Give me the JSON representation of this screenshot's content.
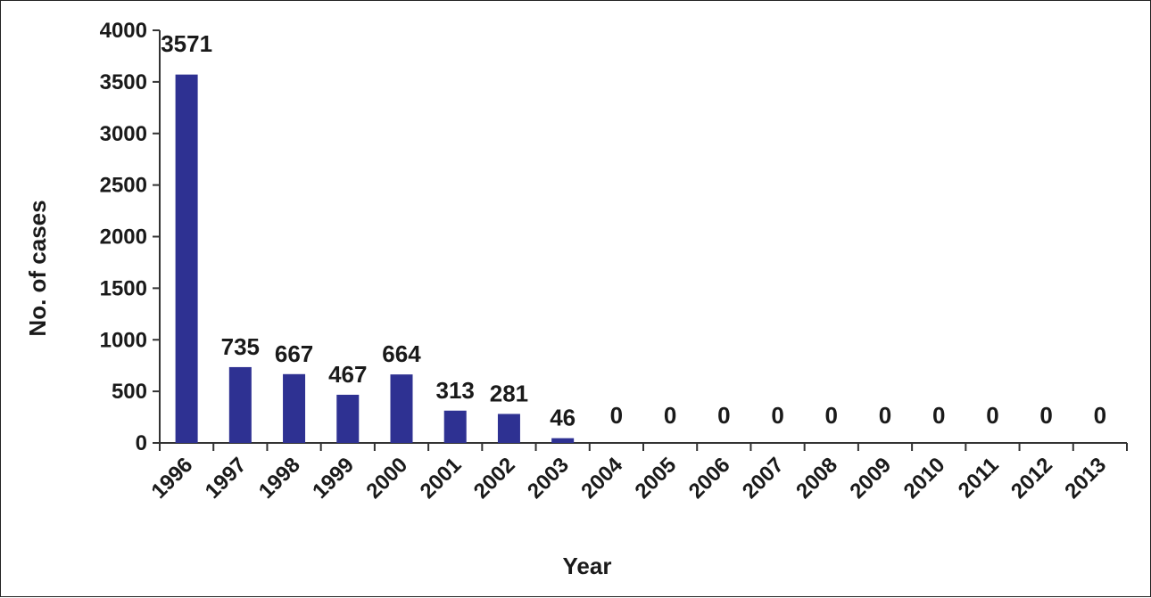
{
  "chart_data": {
    "type": "bar",
    "title": "",
    "xlabel": "Year",
    "ylabel": "No. of cases",
    "ylim": [
      0,
      4000
    ],
    "yticks": [
      0,
      500,
      1000,
      1500,
      2000,
      2500,
      3000,
      3500,
      4000
    ],
    "categories": [
      "1996",
      "1997",
      "1998",
      "1999",
      "2000",
      "2001",
      "2002",
      "2003",
      "2004",
      "2005",
      "2006",
      "2007",
      "2008",
      "2009",
      "2010",
      "2011",
      "2012",
      "2013"
    ],
    "values": [
      3571,
      735,
      667,
      467,
      664,
      313,
      281,
      46,
      0,
      0,
      0,
      0,
      0,
      0,
      0,
      0,
      0,
      0
    ],
    "data_labels": [
      "3571",
      "735",
      "667",
      "467",
      "664",
      "313",
      "281",
      "46",
      "0",
      "0",
      "0",
      "0",
      "0",
      "0",
      "0",
      "0",
      "0",
      "0"
    ],
    "grid": false,
    "legend": "none",
    "colors": {
      "bar": "#2e3192",
      "axis": "#333333",
      "text": "#1a1a1a"
    }
  }
}
